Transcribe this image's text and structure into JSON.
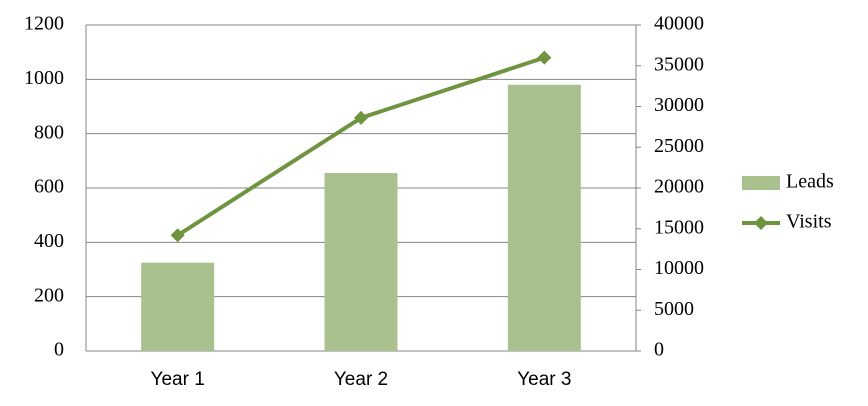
{
  "chart_data": {
    "type": "bar",
    "categories": [
      "Year 1",
      "Year 2",
      "Year 3"
    ],
    "series": [
      {
        "name": "Leads",
        "type": "bar",
        "color": "#a9c08f",
        "values": [
          325,
          655,
          980
        ]
      },
      {
        "name": "Visits",
        "type": "line",
        "axis": "y2",
        "color": "#6f9440",
        "values": [
          14200,
          28600,
          36000
        ]
      }
    ],
    "ylim": [
      0,
      1200
    ],
    "yticks": [
      0,
      200,
      400,
      600,
      800,
      1000,
      1200
    ],
    "y2lim": [
      0,
      40000
    ],
    "y2ticks": [
      0,
      5000,
      10000,
      15000,
      20000,
      25000,
      30000,
      35000,
      40000
    ],
    "grid": true,
    "legend": "right"
  }
}
